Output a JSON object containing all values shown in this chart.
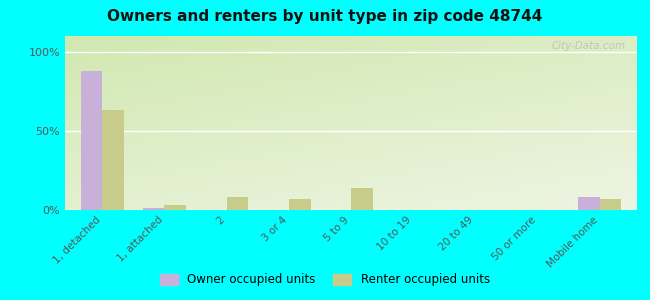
{
  "title": "Owners and renters by unit type in zip code 48744",
  "categories": [
    "1, detached",
    "1, attached",
    "2",
    "3 or 4",
    "5 to 9",
    "10 to 19",
    "20 to 49",
    "50 or more",
    "Mobile home"
  ],
  "owner_values": [
    88,
    1,
    0,
    0,
    0,
    0,
    0,
    0,
    8
  ],
  "renter_values": [
    63,
    3,
    8,
    7,
    14,
    0,
    0,
    0,
    7
  ],
  "owner_color": "#c9b0d8",
  "renter_color": "#c8cc8a",
  "background_color": "#00ffff",
  "plot_bg_color": "#e8f2d8",
  "ylabel_ticks": [
    "0%",
    "50%",
    "100%"
  ],
  "yticks": [
    0,
    50,
    100
  ],
  "ylim": [
    0,
    110
  ],
  "bar_width": 0.35,
  "legend_labels": [
    "Owner occupied units",
    "Renter occupied units"
  ],
  "watermark": "City-Data.com"
}
